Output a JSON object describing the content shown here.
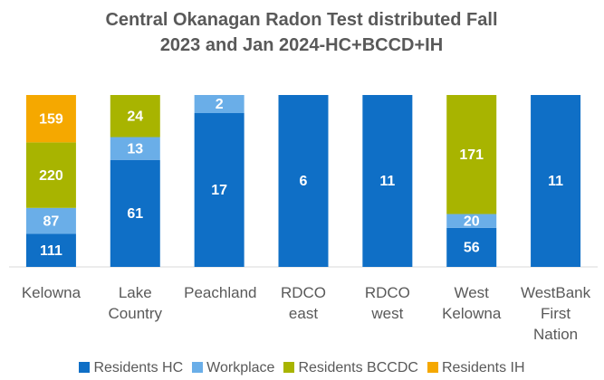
{
  "chart_data": {
    "type": "stacked_bar_100",
    "title": "Central Okanagan Radon Test distributed Fall 2023 and Jan 2024-HC+BCCD+IH",
    "categories": [
      "Kelowna",
      "Lake Country",
      "Peachland",
      "RDCO east",
      "RDCO west",
      "West Kelowna",
      "WestBank First Nation"
    ],
    "series": [
      {
        "name": "Residents HC",
        "color": "#0f6fc6",
        "values": [
          111,
          61,
          17,
          6,
          11,
          56,
          11
        ]
      },
      {
        "name": "Workplace",
        "color": "#6aaee8",
        "values": [
          87,
          13,
          2,
          null,
          null,
          20,
          null
        ]
      },
      {
        "name": "Residents BCCDC",
        "color": "#a8b400",
        "values": [
          220,
          24,
          null,
          null,
          null,
          171,
          null
        ]
      },
      {
        "name": "Residents IH",
        "color": "#f5a800",
        "values": [
          159,
          null,
          null,
          null,
          null,
          null,
          null
        ]
      }
    ],
    "legend": "bottom"
  }
}
